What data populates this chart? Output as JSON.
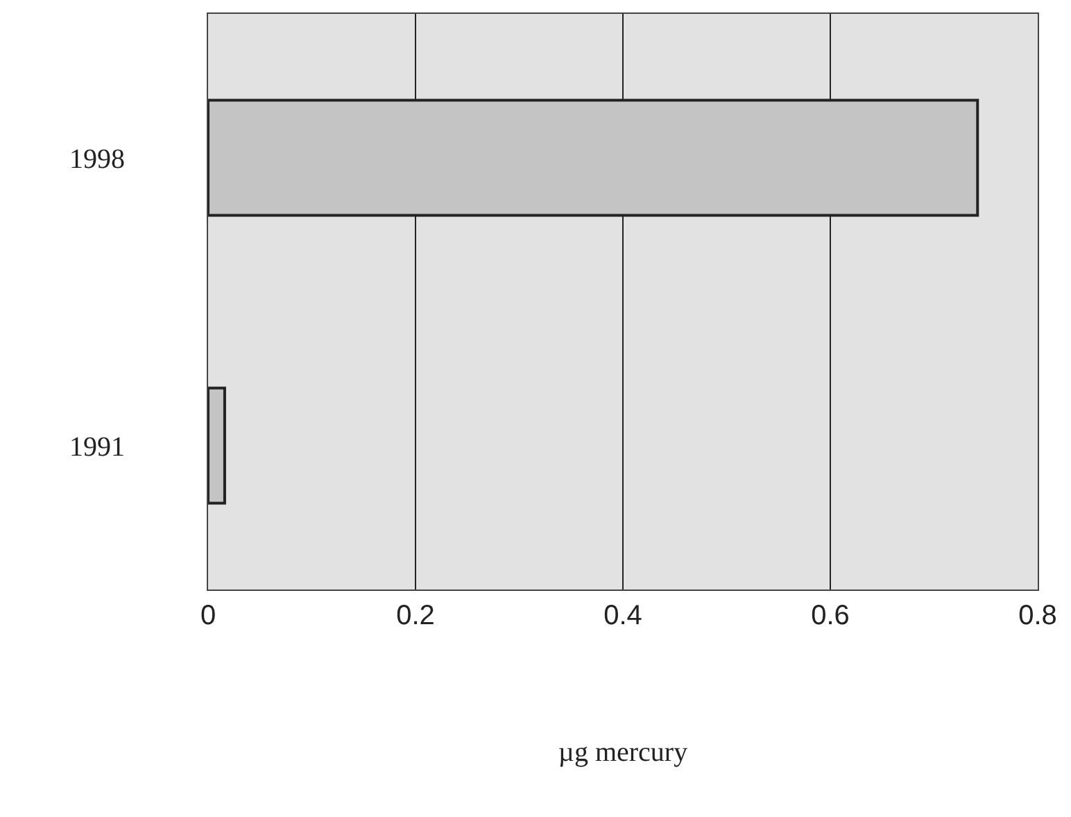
{
  "chart_data": {
    "type": "bar",
    "orientation": "horizontal",
    "categories": [
      "1998",
      "1991"
    ],
    "values": [
      0.742,
      0.016
    ],
    "color": "#c4c4c4",
    "xlim": [
      0,
      0.8
    ],
    "xticks": [
      0,
      0.2,
      0.4,
      0.6,
      0.8
    ],
    "xlabel": "µg mercury",
    "grid": "x"
  }
}
